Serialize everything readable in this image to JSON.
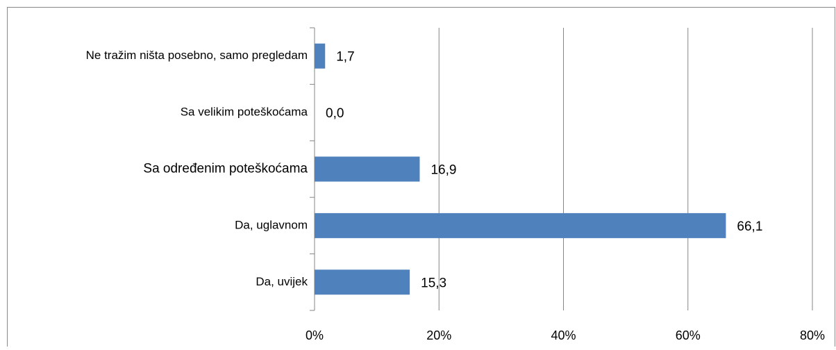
{
  "chart_data": {
    "type": "barh",
    "categories": [
      "Ne tražim ništa posebno, samo pregledam",
      "Sa velikim poteškoćama",
      "Sa određenim poteškoćama",
      "Da, uglavnom",
      "Da, uvijek"
    ],
    "values": [
      1.7,
      0.0,
      16.9,
      66.1,
      15.3
    ],
    "value_labels": [
      "1,7",
      "0,0",
      "16,9",
      "66,1",
      "15,3"
    ],
    "color": "#4f81bd",
    "xlim": [
      0,
      80
    ],
    "xticks": [
      {
        "value": 0,
        "label": "0%"
      },
      {
        "value": 20,
        "label": "20%"
      },
      {
        "value": 40,
        "label": "40%"
      },
      {
        "value": 60,
        "label": "60%"
      },
      {
        "value": 80,
        "label": "80%"
      }
    ],
    "grid": true
  }
}
